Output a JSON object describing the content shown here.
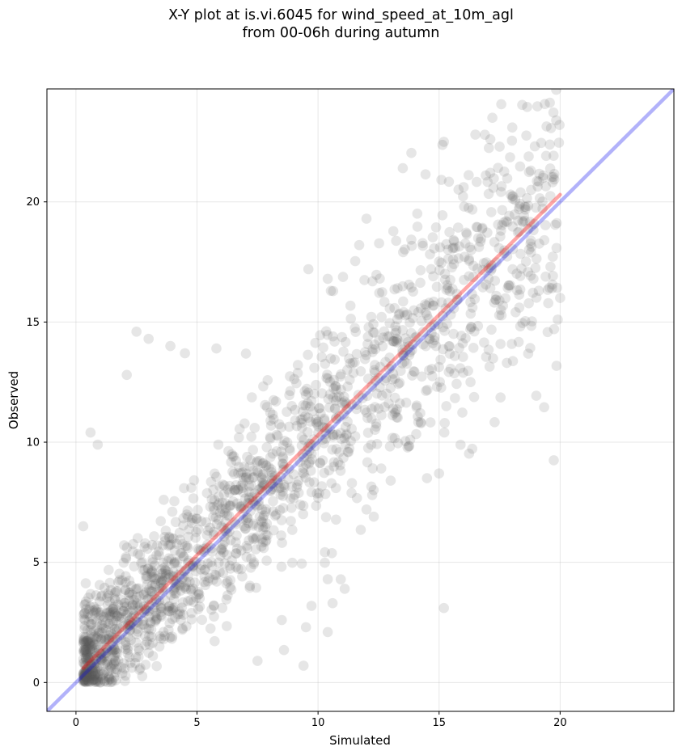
{
  "title_line1": "X-Y plot at is.vi.6045 for wind_speed_at_10m_agl",
  "title_line2": "from 00-06h during autumn",
  "chart_data": {
    "type": "scatter",
    "title": "X-Y plot at is.vi.6045 for wind_speed_at_10m_agl\nfrom 00-06h during autumn",
    "xlabel": "Simulated",
    "ylabel": "Observed",
    "xlim": [
      -1.2,
      24.7
    ],
    "ylim": [
      -1.2,
      24.7
    ],
    "xticks": [
      0,
      5,
      10,
      15,
      20
    ],
    "yticks": [
      0,
      5,
      10,
      15,
      20
    ],
    "grid": true,
    "legend": "none",
    "point_color": "#555555",
    "point_alpha": 0.15,
    "point_count_approx": 1800,
    "lines": [
      {
        "label": "1:1 line",
        "color": "#0000ee",
        "alpha": 0.3,
        "x": [
          -1.2,
          24.7
        ],
        "y": [
          -1.2,
          24.7
        ]
      },
      {
        "label": "regression fit",
        "color": "#ff0000",
        "alpha": 0.35,
        "x": [
          0.3,
          20.0
        ],
        "y": [
          0.6,
          20.3
        ]
      }
    ],
    "cloud_model": {
      "slope": 1.0,
      "intercept": 0.3,
      "residual_sd_base": 1.1,
      "residual_sd_scale": 0.1,
      "x_range": [
        0.3,
        20.0
      ]
    },
    "outliers": [
      {
        "x": 2.5,
        "y": 14.6
      },
      {
        "x": 3.0,
        "y": 14.3
      },
      {
        "x": 3.9,
        "y": 14.0
      },
      {
        "x": 4.5,
        "y": 13.7
      },
      {
        "x": 2.1,
        "y": 12.8
      },
      {
        "x": 5.8,
        "y": 13.9
      },
      {
        "x": 0.6,
        "y": 10.4
      },
      {
        "x": 0.9,
        "y": 9.9
      },
      {
        "x": 0.3,
        "y": 6.5
      },
      {
        "x": 15.2,
        "y": 3.1
      },
      {
        "x": 19.9,
        "y": 15.1
      },
      {
        "x": 20.0,
        "y": 16.0
      },
      {
        "x": 17.2,
        "y": 23.5
      },
      {
        "x": 15.2,
        "y": 22.5
      },
      {
        "x": 17.5,
        "y": 22.3
      },
      {
        "x": 19.3,
        "y": 21.0
      },
      {
        "x": 13.5,
        "y": 21.4
      },
      {
        "x": 16.5,
        "y": 22.8
      },
      {
        "x": 18.8,
        "y": 20.5
      },
      {
        "x": 9.4,
        "y": 0.7
      },
      {
        "x": 10.4,
        "y": 2.1
      },
      {
        "x": 9.5,
        "y": 2.3
      },
      {
        "x": 17.8,
        "y": 13.3
      },
      {
        "x": 18.9,
        "y": 16.8
      },
      {
        "x": 15.0,
        "y": 8.7
      },
      {
        "x": 14.5,
        "y": 8.5
      },
      {
        "x": 12.0,
        "y": 19.3
      },
      {
        "x": 11.7,
        "y": 18.2
      },
      {
        "x": 9.6,
        "y": 17.2
      },
      {
        "x": 10.4,
        "y": 16.8
      },
      {
        "x": 15.3,
        "y": 11.5
      },
      {
        "x": 16.3,
        "y": 12.5
      },
      {
        "x": 10.6,
        "y": 3.3
      },
      {
        "x": 10.4,
        "y": 4.3
      },
      {
        "x": 11.1,
        "y": 3.9
      },
      {
        "x": 13.0,
        "y": 8.4
      },
      {
        "x": 12.3,
        "y": 6.9
      },
      {
        "x": 12.0,
        "y": 7.2
      },
      {
        "x": 8.5,
        "y": 2.6
      },
      {
        "x": 7.5,
        "y": 0.9
      }
    ]
  }
}
